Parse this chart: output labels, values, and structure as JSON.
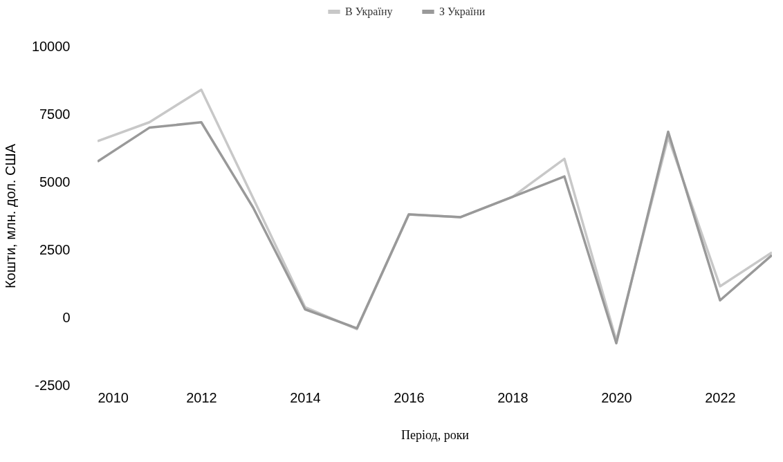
{
  "chart_data": {
    "type": "line",
    "xlabel": "Період, роки",
    "ylabel": "Кошти, млн. дол. США",
    "x": [
      2010,
      2011,
      2012,
      2013,
      2014,
      2015,
      2016,
      2017,
      2018,
      2019,
      2020,
      2021,
      2022,
      2023
    ],
    "series": [
      {
        "name": "В Україну",
        "color": "#c8c8c8",
        "values": [
          6500,
          7200,
          8400,
          4400,
          380,
          -430,
          3800,
          3700,
          4450,
          5850,
          -850,
          6650,
          1150,
          2400
        ]
      },
      {
        "name": "З України",
        "color": "#999999",
        "values": [
          5750,
          7000,
          7200,
          4050,
          300,
          -400,
          3800,
          3700,
          4450,
          5200,
          -950,
          6850,
          630,
          2300
        ]
      }
    ],
    "xlim": [
      2010,
      2023
    ],
    "xticks": [
      2010,
      2012,
      2014,
      2016,
      2018,
      2020,
      2022
    ],
    "ylim": [
      -2500,
      10000
    ],
    "yticks": [
      -2500,
      0,
      2500,
      5000,
      7500,
      10000
    ],
    "grid": false,
    "legend": "top",
    "line_style": "solid",
    "marker": "none"
  }
}
